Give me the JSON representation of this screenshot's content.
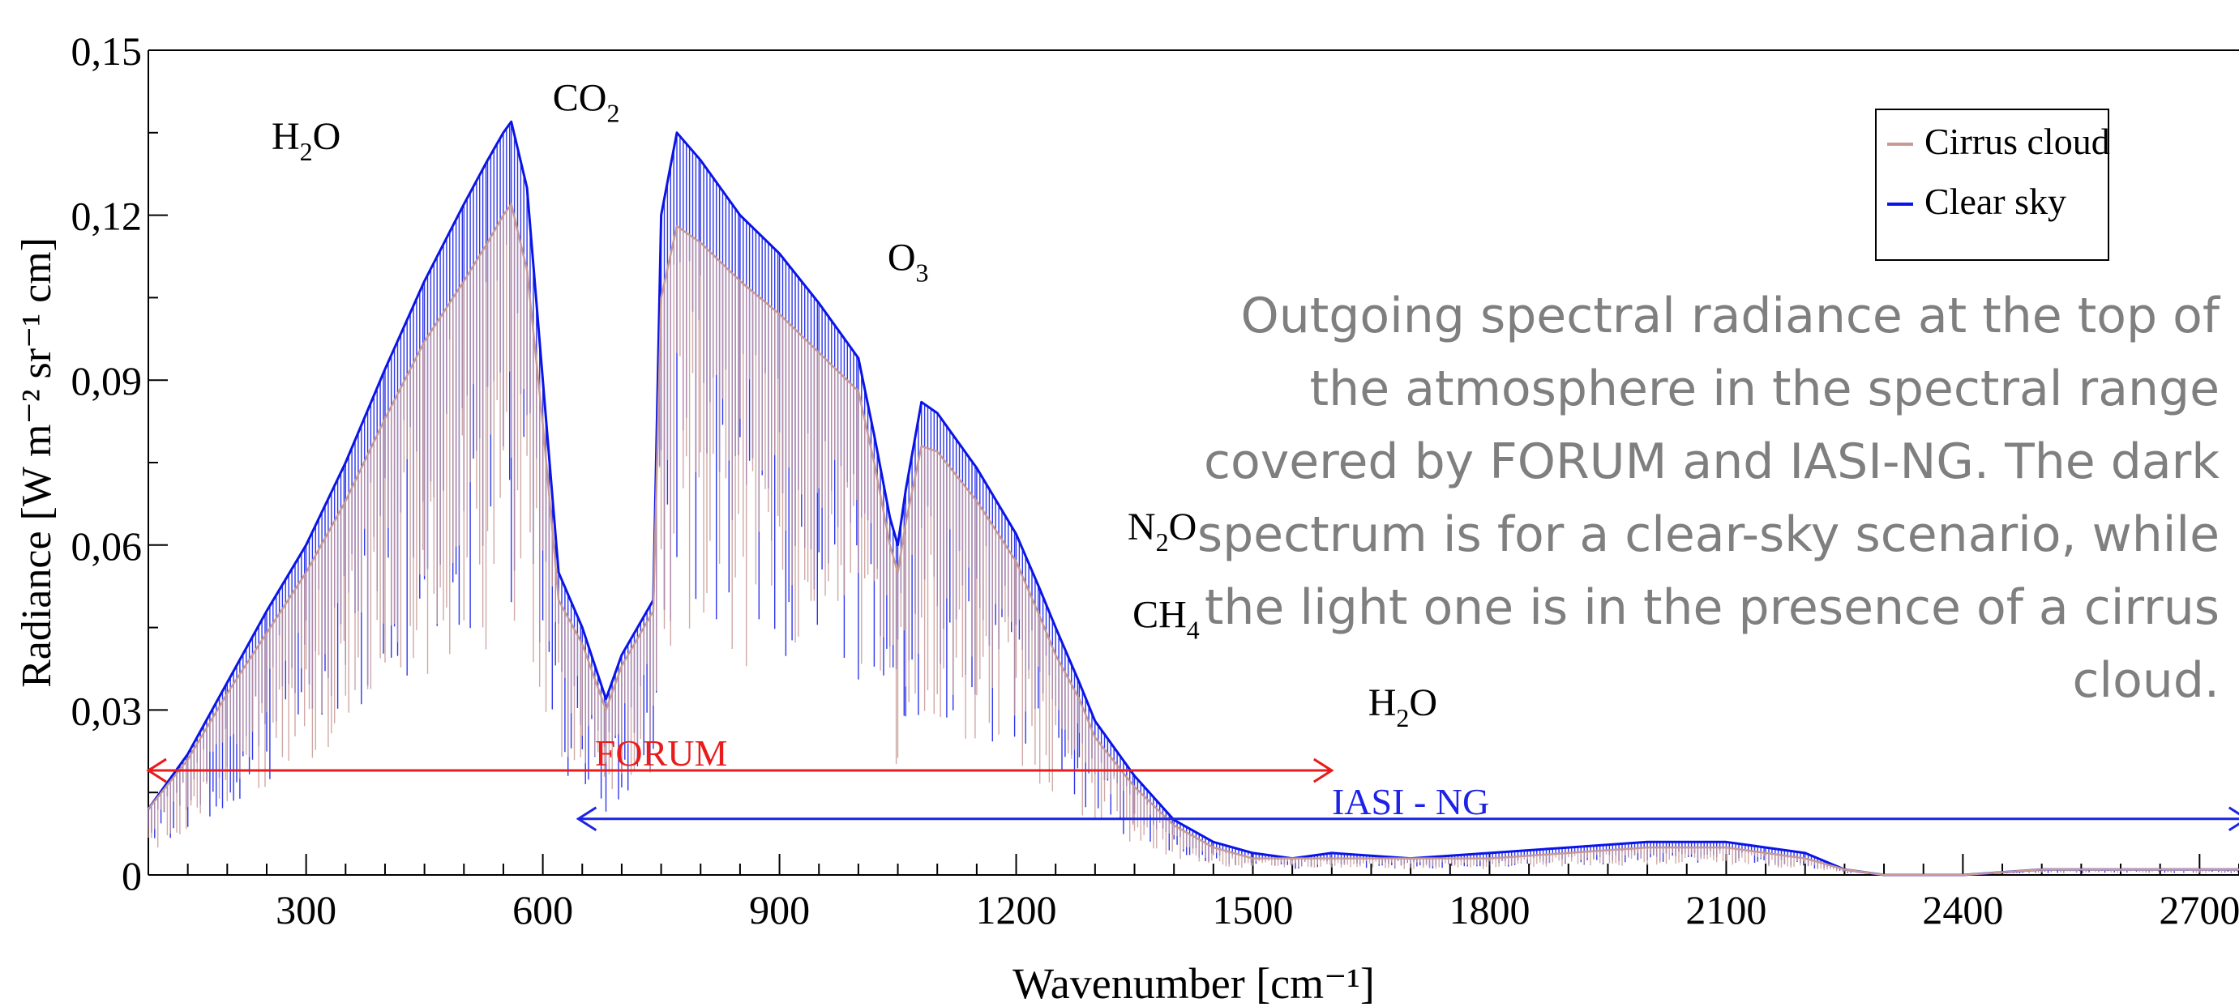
{
  "caption": "Outgoing spectral radiance at the top of the atmosphere in the spectral range covered by FORUM and IASI-NG. The dark spectrum is for a clear-sky scenario, while the light one is in the presence of a cirrus cloud.",
  "colors": {
    "clear_sky": "#0a14e6",
    "cirrus": "#c79a96",
    "forum": "#e81c1c",
    "iasi": "#1c23e6",
    "axis": "#000000",
    "caption": "#7f7f7f"
  },
  "chart_data": {
    "type": "line",
    "xlabel": "Wavenumber [cm⁻¹]",
    "ylabel": "Radiance [W m⁻² sr⁻¹ cm]",
    "xlim": [
      100,
      2750
    ],
    "ylim": [
      0,
      0.15
    ],
    "x_ticks": [
      300,
      600,
      900,
      1200,
      1500,
      1800,
      2100,
      2400,
      2700
    ],
    "y_ticks": [
      {
        "value": 0,
        "label": "0"
      },
      {
        "value": 0.03,
        "label": "0,03"
      },
      {
        "value": 0.06,
        "label": "0,06"
      },
      {
        "value": 0.09,
        "label": "0,09"
      },
      {
        "value": 0.12,
        "label": "0,12"
      },
      {
        "value": 0.15,
        "label": "0,15"
      }
    ],
    "legend": {
      "position": "top-right",
      "entries": [
        {
          "label": "Cirrus cloud",
          "series": "cirrus"
        },
        {
          "label": "Clear sky",
          "series": "clear"
        }
      ]
    },
    "series": [
      {
        "id": "clear",
        "name": "Clear sky",
        "x": [
          100,
          150,
          200,
          250,
          300,
          350,
          400,
          450,
          500,
          530,
          550,
          560,
          580,
          600,
          620,
          650,
          680,
          700,
          720,
          740,
          750,
          770,
          800,
          850,
          900,
          950,
          1000,
          1020,
          1040,
          1050,
          1060,
          1080,
          1100,
          1150,
          1200,
          1230,
          1250,
          1280,
          1300,
          1350,
          1400,
          1450,
          1500,
          1550,
          1600,
          1700,
          1800,
          1900,
          2000,
          2100,
          2150,
          2200,
          2250,
          2300,
          2400,
          2500,
          2600,
          2750
        ],
        "y": [
          0.012,
          0.022,
          0.035,
          0.048,
          0.06,
          0.075,
          0.092,
          0.108,
          0.122,
          0.13,
          0.135,
          0.137,
          0.125,
          0.09,
          0.055,
          0.045,
          0.032,
          0.04,
          0.045,
          0.05,
          0.12,
          0.135,
          0.13,
          0.12,
          0.113,
          0.104,
          0.094,
          0.08,
          0.065,
          0.06,
          0.07,
          0.086,
          0.084,
          0.074,
          0.062,
          0.052,
          0.045,
          0.035,
          0.028,
          0.018,
          0.01,
          0.006,
          0.004,
          0.003,
          0.004,
          0.003,
          0.004,
          0.005,
          0.006,
          0.006,
          0.005,
          0.004,
          0.001,
          0.0,
          0.0,
          0.001,
          0.001,
          0.001
        ]
      },
      {
        "id": "cirrus",
        "name": "Cirrus cloud",
        "x": [
          100,
          150,
          200,
          250,
          300,
          350,
          400,
          450,
          500,
          530,
          550,
          560,
          580,
          600,
          620,
          650,
          680,
          700,
          720,
          740,
          750,
          770,
          800,
          850,
          900,
          950,
          1000,
          1020,
          1040,
          1050,
          1060,
          1080,
          1100,
          1150,
          1200,
          1230,
          1250,
          1280,
          1300,
          1350,
          1400,
          1450,
          1500,
          1550,
          1600,
          1700,
          1800,
          1900,
          2000,
          2100,
          2150,
          2200,
          2250,
          2300,
          2400,
          2500,
          2600,
          2750
        ],
        "y": [
          0.012,
          0.021,
          0.033,
          0.044,
          0.055,
          0.068,
          0.083,
          0.097,
          0.108,
          0.115,
          0.12,
          0.122,
          0.11,
          0.082,
          0.05,
          0.042,
          0.03,
          0.038,
          0.043,
          0.048,
          0.105,
          0.118,
          0.115,
          0.108,
          0.102,
          0.095,
          0.088,
          0.075,
          0.06,
          0.055,
          0.064,
          0.078,
          0.077,
          0.068,
          0.057,
          0.047,
          0.04,
          0.032,
          0.025,
          0.016,
          0.009,
          0.005,
          0.003,
          0.003,
          0.003,
          0.003,
          0.003,
          0.004,
          0.005,
          0.005,
          0.004,
          0.003,
          0.001,
          0.0,
          0.0,
          0.001,
          0.001,
          0.001
        ]
      }
    ],
    "annotations": [
      {
        "label": "H2O",
        "x": 300,
        "y": 0.132
      },
      {
        "label": "CO2",
        "x": 655,
        "y": 0.139
      },
      {
        "label": "O3",
        "x": 1063,
        "y": 0.11
      },
      {
        "label": "N2O",
        "x": 1385,
        "y": 0.061
      },
      {
        "label": "CH4",
        "x": 1390,
        "y": 0.045
      },
      {
        "label": "H2O",
        "x": 1690,
        "y": 0.029
      }
    ],
    "ranges": [
      {
        "label": "FORUM",
        "from": 100,
        "to": 1600,
        "y": 0.019,
        "label_x": 750,
        "color_key": "forum"
      },
      {
        "label": "IASI - NG",
        "from": 645,
        "to": 2760,
        "y": 0.0102,
        "label_x": 1700,
        "color_key": "iasi"
      }
    ]
  }
}
